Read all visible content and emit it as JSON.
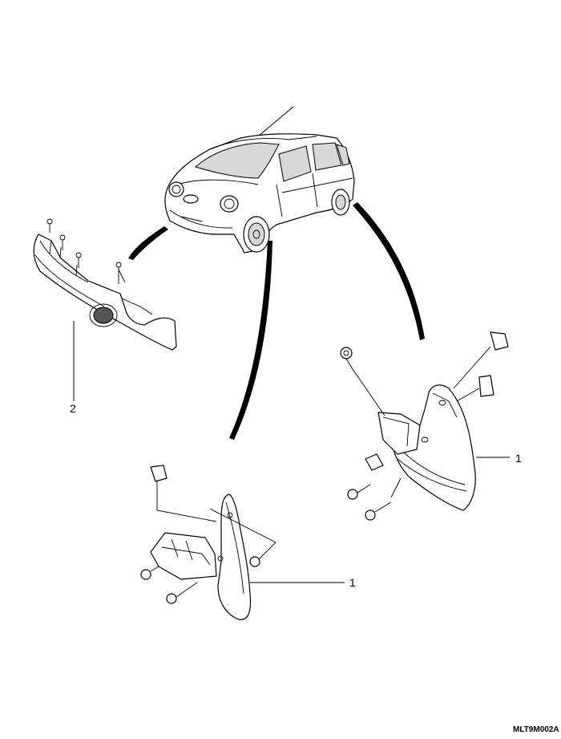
{
  "callouts": {
    "mud_guard_rear": "1",
    "mud_guard_front": "1",
    "front_spoiler": "2"
  },
  "drawing_code": "MLT9M002A"
}
